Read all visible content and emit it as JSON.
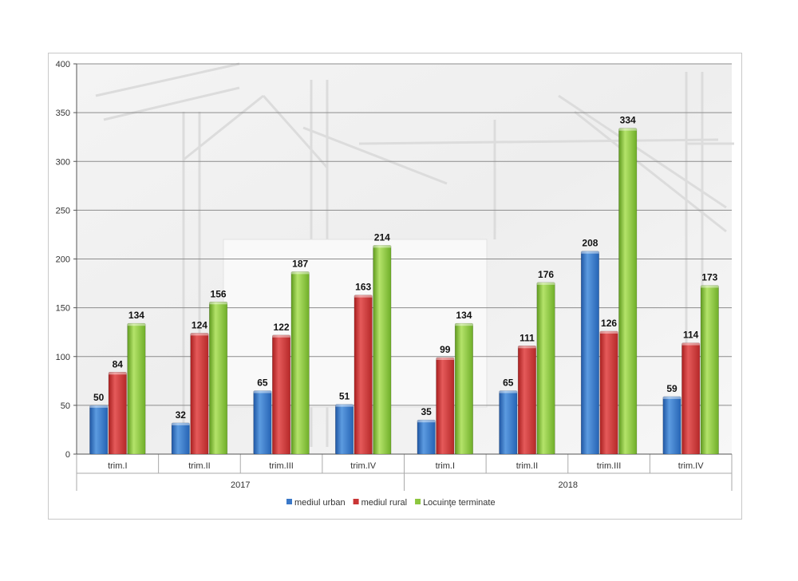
{
  "chart_data": {
    "type": "bar",
    "groups": [
      {
        "label": "2017",
        "categories": [
          "trim.I",
          "trim.II",
          "trim.III",
          "trim.IV"
        ]
      },
      {
        "label": "2018",
        "categories": [
          "trim.I",
          "trim.II",
          "trim.III",
          "trim.IV"
        ]
      }
    ],
    "series": [
      {
        "name": "mediul urban",
        "color": "#3a78c8",
        "values": [
          50,
          32,
          65,
          51,
          35,
          65,
          208,
          59
        ]
      },
      {
        "name": "mediul rural",
        "color": "#c93535",
        "values": [
          84,
          124,
          122,
          163,
          99,
          111,
          126,
          114
        ]
      },
      {
        "name": "Locuinţe terminate",
        "color": "#8cc63f",
        "values": [
          134,
          156,
          187,
          214,
          134,
          176,
          334,
          173
        ]
      }
    ],
    "y_ticks": [
      "0",
      "50",
      "100",
      "150",
      "200",
      "250",
      "300",
      "350",
      "400"
    ],
    "ylim": [
      0,
      400
    ],
    "grid": true,
    "legend_position": "bottom"
  }
}
